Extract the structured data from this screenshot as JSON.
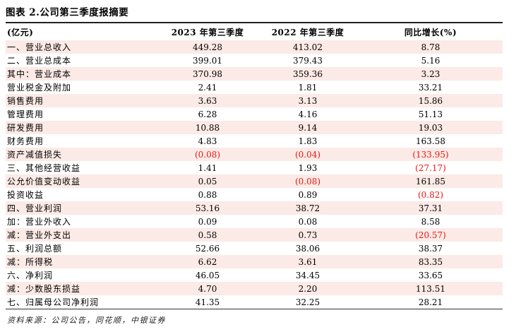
{
  "title": "图表 2.公司第三季度报摘要",
  "colors": {
    "stripe": "#fbeae6",
    "negative_text": "#ee1511",
    "rule": "#222222"
  },
  "table": {
    "headers": [
      "(亿元)",
      "2023 年第三季度",
      "2022 年第三季度",
      "同比增长(%)"
    ],
    "rows": [
      {
        "label": "一、营业总收入",
        "q3_2023": "449.28",
        "q3_2022": "413.02",
        "yoy": "8.78"
      },
      {
        "label": "二、营业总成本",
        "q3_2023": "399.01",
        "q3_2022": "379.43",
        "yoy": "5.16"
      },
      {
        "label": "其中：营业成本",
        "q3_2023": "370.98",
        "q3_2022": "359.36",
        "yoy": "3.23"
      },
      {
        "label": "营业税金及附加",
        "q3_2023": "2.41",
        "q3_2022": "1.81",
        "yoy": "33.21"
      },
      {
        "label": "销售费用",
        "q3_2023": "3.63",
        "q3_2022": "3.13",
        "yoy": "15.86"
      },
      {
        "label": "管理费用",
        "q3_2023": "6.28",
        "q3_2022": "4.16",
        "yoy": "51.13"
      },
      {
        "label": "研发费用",
        "q3_2023": "10.88",
        "q3_2022": "9.14",
        "yoy": "19.03"
      },
      {
        "label": "财务费用",
        "q3_2023": "4.83",
        "q3_2022": "1.83",
        "yoy": "163.58"
      },
      {
        "label": "资产减值损失",
        "q3_2023": "(0.08)",
        "q3_2022": "(0.04)",
        "yoy": "(133.95)"
      },
      {
        "label": "三、其他经营收益",
        "q3_2023": "1.41",
        "q3_2022": "1.93",
        "yoy": "(27.17)"
      },
      {
        "label": "公允价值变动收益",
        "q3_2023": "0.05",
        "q3_2022": "(0.08)",
        "yoy": "161.85"
      },
      {
        "label": "投资收益",
        "q3_2023": "0.88",
        "q3_2022": "0.89",
        "yoy": "(0.82)"
      },
      {
        "label": "四、营业利润",
        "q3_2023": "53.16",
        "q3_2022": "38.72",
        "yoy": "37.31"
      },
      {
        "label": "加：营业外收入",
        "q3_2023": "0.09",
        "q3_2022": "0.08",
        "yoy": "8.58"
      },
      {
        "label": "减：营业外支出",
        "q3_2023": "0.58",
        "q3_2022": "0.73",
        "yoy": "(20.57)"
      },
      {
        "label": "五、利润总额",
        "q3_2023": "52.66",
        "q3_2022": "38.06",
        "yoy": "38.37"
      },
      {
        "label": "减：所得税",
        "q3_2023": "6.62",
        "q3_2022": "3.61",
        "yoy": "83.35"
      },
      {
        "label": "六、净利润",
        "q3_2023": "46.05",
        "q3_2022": "34.45",
        "yoy": "33.65"
      },
      {
        "label": "减：少数股东损益",
        "q3_2023": "4.70",
        "q3_2022": "2.20",
        "yoy": "113.51"
      },
      {
        "label": "七、归属母公司净利润",
        "q3_2023": "41.35",
        "q3_2022": "32.25",
        "yoy": "28.21"
      }
    ]
  },
  "footer": {
    "source": "资料来源：公司公告，同花顺，中银证券"
  }
}
